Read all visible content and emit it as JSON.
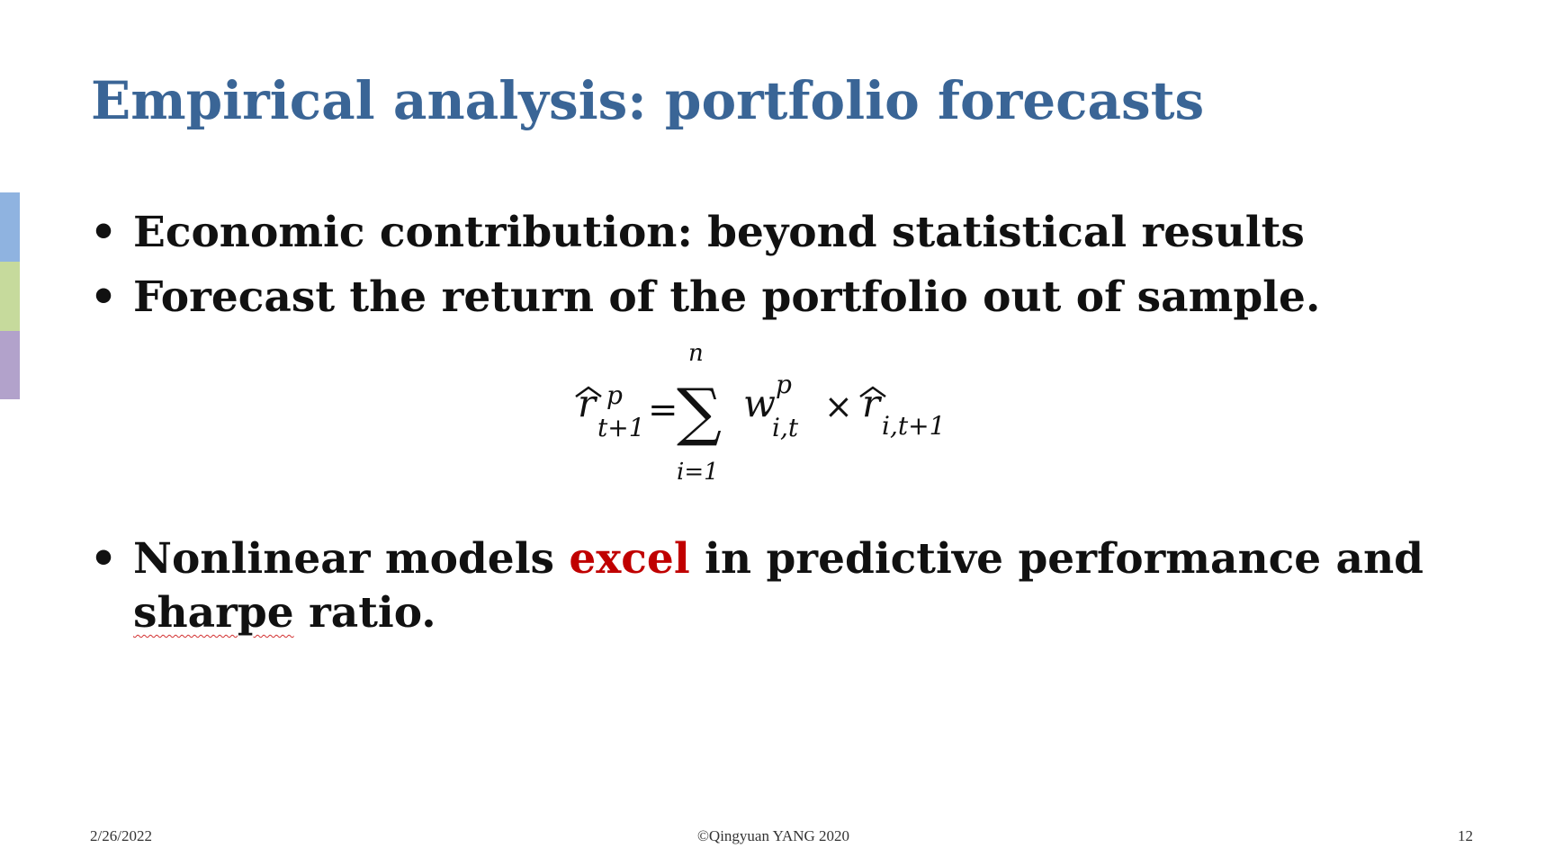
{
  "slide": {
    "title": "Empirical analysis: portfolio forecasts",
    "bullets": [
      "Economic contribution: beyond statistical results",
      "Forecast the return of the portfolio out of sample."
    ],
    "bullet_marker": "•",
    "third_bullet": {
      "part1": "Nonlinear models ",
      "highlight": "excel",
      "part2": " in predictive performance and ",
      "squiggle_word": "sharpe",
      "part3": " ratio."
    },
    "formula": {
      "lhs_var": "r",
      "lhs_sup": "p",
      "lhs_sub": "t+1",
      "equals": "=",
      "sum": "∑",
      "upper": "n",
      "lower": "i=1",
      "w_var": "w",
      "w_sup": "p",
      "w_sub": "i,t",
      "times": "×",
      "rhs_var": "r",
      "rhs_sub": "i,t+1"
    },
    "accent_colors": [
      "#8fb3e0",
      "#c6da9c",
      "#b2a2cb"
    ],
    "title_color": "#3a6596",
    "highlight_color": "#c00000"
  },
  "footer": {
    "date": "2/26/2022",
    "copyright": "©Qingyuan YANG 2020",
    "page_number": "12"
  }
}
